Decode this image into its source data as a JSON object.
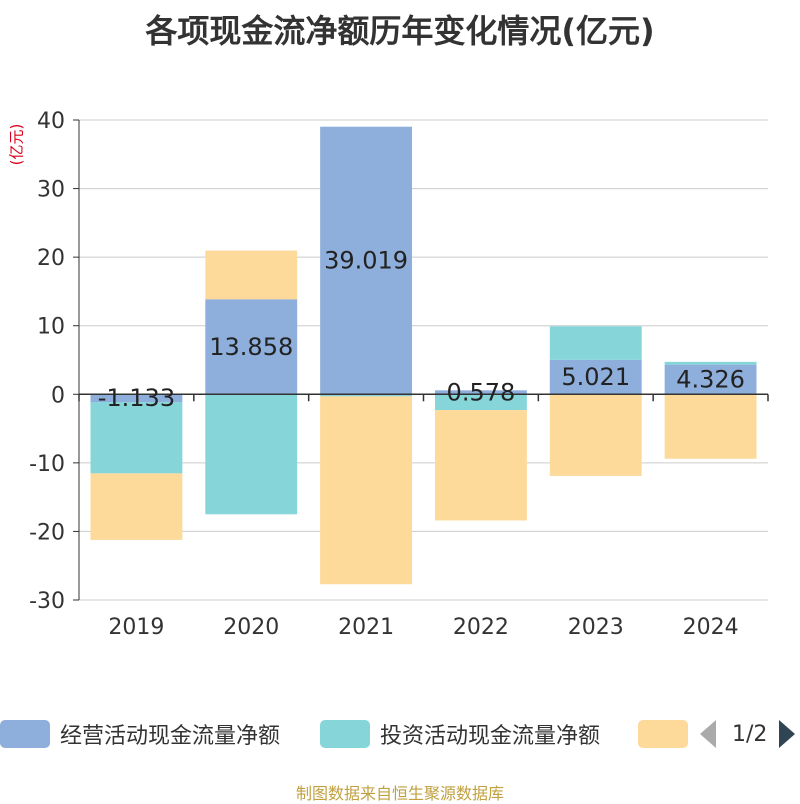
{
  "chart_data": {
    "type": "bar",
    "stacked": true,
    "title": "各项现金流净额历年变化情况(亿元)",
    "ylabel": "(亿元)",
    "xlabel": "",
    "ylim": [
      -30,
      40
    ],
    "yticks": [
      -30,
      -20,
      -10,
      0,
      10,
      20,
      30,
      40
    ],
    "grid": true,
    "categories": [
      "2019",
      "2020",
      "2021",
      "2022",
      "2023",
      "2024"
    ],
    "series": [
      {
        "name": "经营活动现金流量净额",
        "color": "#8eaedb",
        "values": [
          -1.133,
          13.858,
          39.019,
          0.578,
          5.021,
          4.326
        ],
        "labels": [
          "-1.133",
          "13.858",
          "39.019",
          "0.578",
          "5.021",
          "4.326"
        ]
      },
      {
        "name": "投资活动现金流量净额",
        "color": "#86d5d9",
        "values": [
          -10.4,
          -17.5,
          -0.3,
          -2.3,
          4.9,
          0.4
        ]
      },
      {
        "name": "",
        "color": "#fdd99a",
        "values": [
          -9.7,
          7.1,
          -27.4,
          -16.1,
          -11.9,
          -9.4
        ]
      }
    ],
    "legend_position": "bottom"
  },
  "legend": {
    "items": [
      {
        "label": "经营活动现金流量净额",
        "color": "#8eaedb"
      },
      {
        "label": "投资活动现金流量净额",
        "color": "#86d5d9"
      },
      {
        "label": "",
        "color": "#fdd99a"
      }
    ],
    "page": "1/2"
  },
  "source": "制图数据来自恒生聚源数据库"
}
